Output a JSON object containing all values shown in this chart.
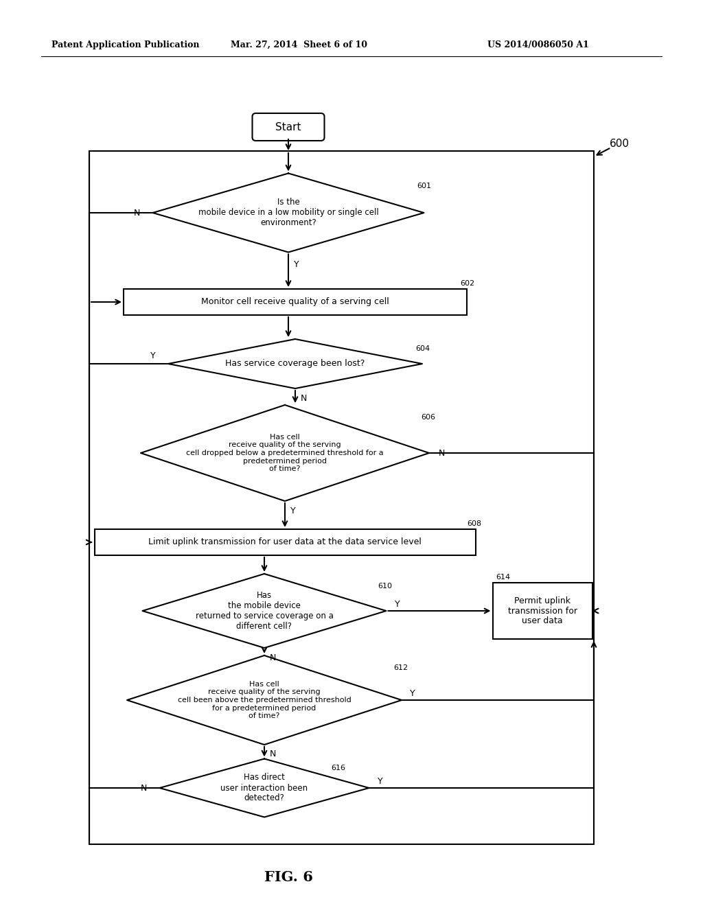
{
  "bg_color": "#ffffff",
  "header_left": "Patent Application Publication",
  "header_mid": "Mar. 27, 2014  Sheet 6 of 10",
  "header_right": "US 2014/0086050 A1",
  "figure_label": "FIG. 6",
  "diagram_ref": "600",
  "lw": 1.5,
  "lc": "#000000",
  "nodes": {
    "start": {
      "label": "Start",
      "type": "rounded_rect"
    },
    "n601": {
      "label": "Is the\nmobile device in a low mobility or single cell\nenvironment?",
      "type": "diamond",
      "ref": "601"
    },
    "n602": {
      "label": "Monitor cell receive quality of a serving cell",
      "type": "rect",
      "ref": "602"
    },
    "n604": {
      "label": "Has service coverage been lost?",
      "type": "diamond",
      "ref": "604"
    },
    "n606": {
      "label": "Has cell\nreceive quality of the serving\ncell dropped below a predetermined threshold for a\npredetermined period\nof time?",
      "type": "diamond",
      "ref": "606"
    },
    "n608": {
      "label": "Limit uplink transmission for user data at the data service level",
      "type": "rect",
      "ref": "608"
    },
    "n610": {
      "label": "Has\nthe mobile device\nreturned to service coverage on a\ndifferent cell?",
      "type": "diamond",
      "ref": "610"
    },
    "n614": {
      "label": "Permit uplink\ntransmission for\nuser data",
      "type": "rect",
      "ref": "614"
    },
    "n612": {
      "label": "Has cell\nreceive quality of the serving\ncell been above the predetermined threshold\nfor a predetermined period\nof time?",
      "type": "diamond",
      "ref": "612"
    },
    "n616": {
      "label": "Has direct\nuser interaction been\ndetected?",
      "type": "diamond",
      "ref": "616"
    }
  }
}
